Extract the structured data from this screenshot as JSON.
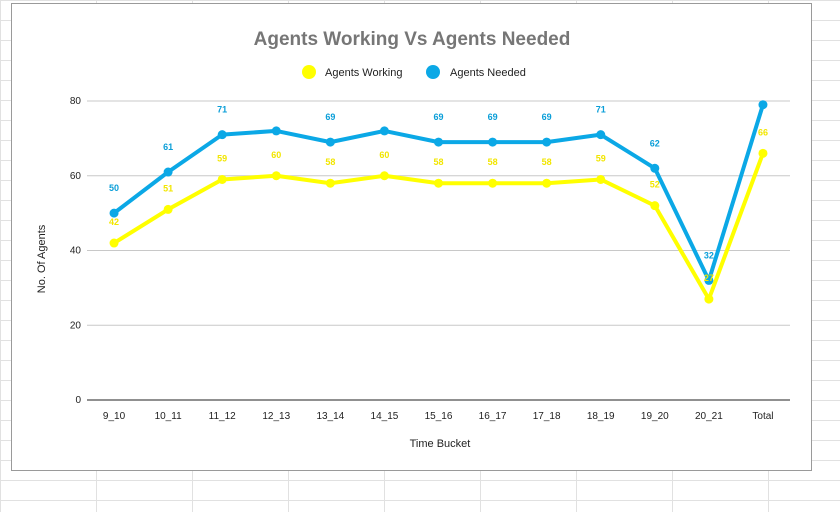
{
  "chart_data": {
    "type": "line",
    "title": "Agents Working Vs Agents Needed",
    "xlabel": "Time Bucket",
    "ylabel": "No. Of Agents",
    "categories": [
      "9_10",
      "10_11",
      "11_12",
      "12_13",
      "13_14",
      "14_15",
      "15_16",
      "16_17",
      "17_18",
      "18_19",
      "19_20",
      "20_21",
      "Total"
    ],
    "ylim": [
      0,
      80
    ],
    "yticks": [
      0,
      20,
      40,
      60,
      80
    ],
    "grid": true,
    "legend_position": "top",
    "series": [
      {
        "name": "Agents Working",
        "color": "#ffff00",
        "label_color": "#f2e600",
        "values": [
          42,
          51,
          59,
          60,
          58,
          60,
          58,
          58,
          58,
          59,
          52,
          27,
          66
        ],
        "labels": [
          "42",
          "51",
          "59",
          "60",
          "58",
          "60",
          "58",
          "58",
          "58",
          "59",
          "52",
          "27",
          "66"
        ]
      },
      {
        "name": "Agents Needed",
        "color": "#0ba8e6",
        "label_color": "#0a9ed8",
        "values": [
          50,
          61,
          71,
          72,
          69,
          72,
          69,
          69,
          69,
          71,
          62,
          32,
          79
        ],
        "labels": [
          "50",
          "61",
          "71",
          "",
          "69",
          "",
          "69",
          "69",
          "69",
          "71",
          "62",
          "32",
          ""
        ]
      }
    ]
  }
}
